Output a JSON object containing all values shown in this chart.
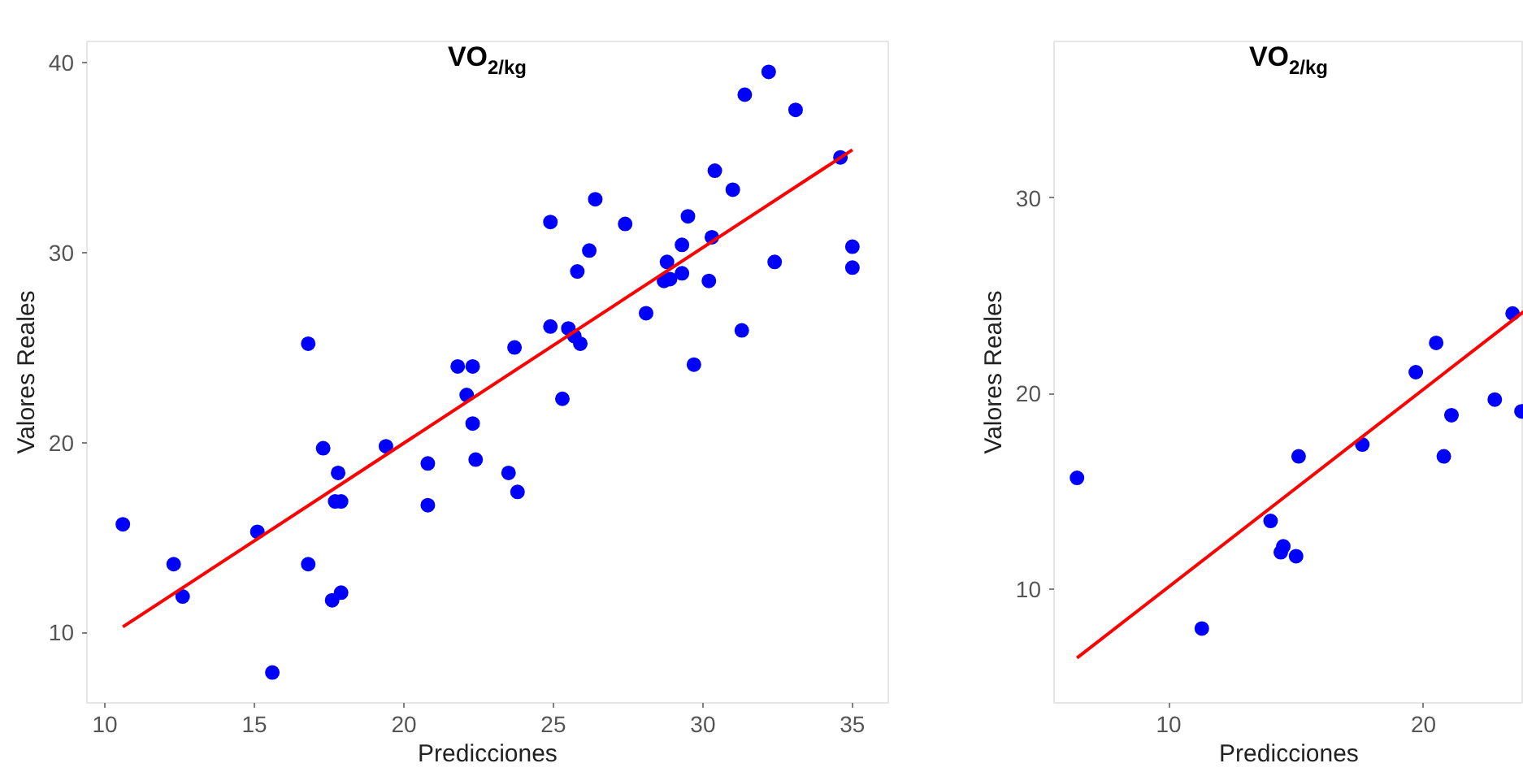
{
  "chart_data": [
    {
      "type": "scatter",
      "title": "VO$_{2/kg}$",
      "xlabel": "Predicciones",
      "ylabel": "Valores Reales",
      "xlim": [
        9.4,
        36.2
      ],
      "ylim": [
        6.3,
        41.1
      ],
      "xticks": [
        10,
        15,
        20,
        25,
        30,
        35
      ],
      "yticks": [
        10,
        20,
        30,
        40
      ],
      "grid": false,
      "series": [
        {
          "marker": "circle",
          "color": "#0000ff",
          "x": [
            10.6,
            12.3,
            12.6,
            15.1,
            15.6,
            16.8,
            16.8,
            17.3,
            17.8,
            17.7,
            17.9,
            17.6,
            17.9,
            19.4,
            20.8,
            20.8,
            21.8,
            22.3,
            22.1,
            22.3,
            22.4,
            23.5,
            23.8,
            23.7,
            24.9,
            24.9,
            25.3,
            25.5,
            25.7,
            25.9,
            25.8,
            26.2,
            26.4,
            27.4,
            28.1,
            28.7,
            28.9,
            28.8,
            29.3,
            29.3,
            29.5,
            29.7,
            30.2,
            30.3,
            30.4,
            31.0,
            31.3,
            31.4,
            32.2,
            32.4,
            33.1,
            34.6,
            35.0,
            35.0
          ],
          "values": [
            15.7,
            13.6,
            11.9,
            15.3,
            7.9,
            25.2,
            13.6,
            19.7,
            18.4,
            16.9,
            16.9,
            11.7,
            12.1,
            19.8,
            18.9,
            16.7,
            24.0,
            24.0,
            22.5,
            21.0,
            19.1,
            18.4,
            17.4,
            25.0,
            31.6,
            26.1,
            22.3,
            26.0,
            25.6,
            25.2,
            29.0,
            30.1,
            32.8,
            31.5,
            26.8,
            28.5,
            28.6,
            29.5,
            28.9,
            30.4,
            31.9,
            24.1,
            28.5,
            30.8,
            34.3,
            33.3,
            25.9,
            38.3,
            39.5,
            29.5,
            37.5,
            35.0,
            30.3,
            29.2
          ]
        },
        {
          "type": "line",
          "marker": "none",
          "line_style": "solid",
          "color": "#ff0000",
          "x": [
            10.6,
            35.0
          ],
          "values": [
            10.3,
            35.4
          ]
        }
      ]
    },
    {
      "type": "scatter",
      "title": "VO$_{2/kg}$",
      "xlabel": "Predicciones",
      "ylabel": "Valores Reales",
      "xlim": [
        5.5,
        23.94
      ],
      "ylim": [
        4.2,
        38.0
      ],
      "xticks": [
        10,
        20
      ],
      "yticks": [
        10,
        20,
        30
      ],
      "grid": false,
      "series": [
        {
          "marker": "circle",
          "color": "#0000ff",
          "x": [
            6.4,
            11.3,
            14.0,
            14.4,
            14.5,
            15.0,
            15.1,
            17.6,
            19.7,
            20.5,
            21.1,
            20.8,
            22.8,
            23.5,
            23.85
          ],
          "values": [
            15.7,
            8.0,
            13.5,
            11.9,
            12.2,
            11.7,
            16.8,
            17.4,
            21.1,
            22.6,
            18.9,
            16.8,
            19.7,
            24.1,
            19.1
          ]
        },
        {
          "type": "line",
          "marker": "none",
          "line_style": "solid",
          "color": "#ff0000",
          "x": [
            6.4,
            23.94
          ],
          "values": [
            6.5,
            24.2
          ]
        }
      ]
    }
  ]
}
